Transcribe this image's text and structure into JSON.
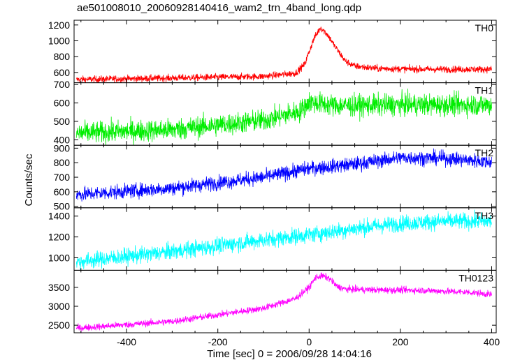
{
  "chart_data": {
    "type": "line",
    "title": "ae501008010_20060928140416_wam2_trn_4band_long.qdp",
    "xlabel": "Time [sec] 0 = 2006/09/28 14:04:16",
    "ylabel": "Counts/sec",
    "xlim": [
      -515,
      410
    ],
    "x_ticks": [
      -400,
      -200,
      0,
      200,
      400
    ],
    "panels": [
      {
        "name": "TH0",
        "color": "#ff0000",
        "ylim": [
          470,
          1260
        ],
        "y_ticks": [
          600,
          800,
          1000,
          1200
        ],
        "noise": 22,
        "points": [
          [
            -510,
            510
          ],
          [
            -300,
            530
          ],
          [
            -100,
            550
          ],
          [
            -30,
            590
          ],
          [
            -10,
            700
          ],
          [
            10,
            1020
          ],
          [
            25,
            1170
          ],
          [
            40,
            1080
          ],
          [
            60,
            900
          ],
          [
            80,
            740
          ],
          [
            100,
            680
          ],
          [
            150,
            650
          ],
          [
            250,
            640
          ],
          [
            400,
            640
          ]
        ]
      },
      {
        "name": "TH1",
        "color": "#00ee00",
        "ylim": [
          370,
          710
        ],
        "y_ticks": [
          400,
          500,
          600,
          700
        ],
        "noise": 30,
        "points": [
          [
            -510,
            435
          ],
          [
            -300,
            455
          ],
          [
            -100,
            505
          ],
          [
            -20,
            555
          ],
          [
            0,
            605
          ],
          [
            60,
            585
          ],
          [
            200,
            590
          ],
          [
            400,
            590
          ]
        ]
      },
      {
        "name": "TH2",
        "color": "#0000ff",
        "ylim": [
          490,
          920
        ],
        "y_ticks": [
          500,
          600,
          700,
          800,
          900
        ],
        "noise": 25,
        "points": [
          [
            -510,
            580
          ],
          [
            -300,
            625
          ],
          [
            -100,
            700
          ],
          [
            0,
            760
          ],
          [
            100,
            790
          ],
          [
            200,
            835
          ],
          [
            300,
            830
          ],
          [
            400,
            805
          ]
        ]
      },
      {
        "name": "TH3",
        "color": "#00ffff",
        "ylim": [
          880,
          1480
        ],
        "y_ticks": [
          1000,
          1200,
          1400
        ],
        "noise": 40,
        "points": [
          [
            -510,
            960
          ],
          [
            -300,
            1060
          ],
          [
            -100,
            1170
          ],
          [
            0,
            1220
          ],
          [
            100,
            1280
          ],
          [
            200,
            1330
          ],
          [
            300,
            1350
          ],
          [
            400,
            1350
          ]
        ]
      },
      {
        "name": "TH0123",
        "color": "#ff00ff",
        "ylim": [
          2300,
          3950
        ],
        "y_ticks": [
          2500,
          3000,
          3500
        ],
        "noise": 45,
        "points": [
          [
            -510,
            2420
          ],
          [
            -300,
            2600
          ],
          [
            -100,
            2950
          ],
          [
            -30,
            3200
          ],
          [
            0,
            3500
          ],
          [
            15,
            3770
          ],
          [
            30,
            3800
          ],
          [
            45,
            3730
          ],
          [
            60,
            3530
          ],
          [
            80,
            3450
          ],
          [
            150,
            3430
          ],
          [
            250,
            3420
          ],
          [
            350,
            3370
          ],
          [
            400,
            3310
          ]
        ]
      }
    ]
  }
}
